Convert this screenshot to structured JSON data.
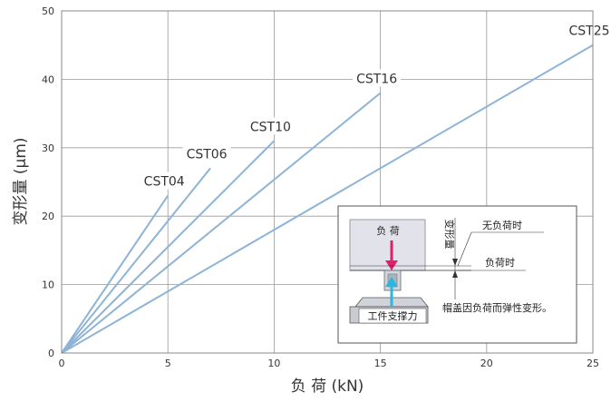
{
  "chart_data": {
    "type": "line",
    "xlabel": "负 荷 (kN)",
    "ylabel": "变形量 (μm)",
    "xlim": [
      0,
      25
    ],
    "ylim": [
      0,
      50
    ],
    "x_ticks": [
      0,
      5,
      10,
      15,
      20,
      25
    ],
    "y_ticks": [
      0,
      10,
      20,
      30,
      40,
      50
    ],
    "grid": true,
    "series": [
      {
        "name": "CST04",
        "x": [
          0,
          5
        ],
        "y": [
          0,
          23
        ],
        "color": "#8db3d6"
      },
      {
        "name": "CST06",
        "x": [
          0,
          7
        ],
        "y": [
          0,
          27
        ],
        "color": "#8db3d6"
      },
      {
        "name": "CST10",
        "x": [
          0,
          10
        ],
        "y": [
          0,
          31
        ],
        "color": "#8db3d6"
      },
      {
        "name": "CST16",
        "x": [
          0,
          15
        ],
        "y": [
          0,
          38
        ],
        "color": "#8db3d6"
      },
      {
        "name": "CST25",
        "x": [
          0,
          25
        ],
        "y": [
          0,
          45
        ],
        "color": "#8db3d6"
      }
    ]
  },
  "inset": {
    "load_label": "负 荷",
    "deform_label": "变形量",
    "no_load_label": "无负荷时",
    "loaded_label": "负荷时",
    "description": "帽盖因负荷而弹性变形。",
    "support_label": "工件支撑力"
  }
}
